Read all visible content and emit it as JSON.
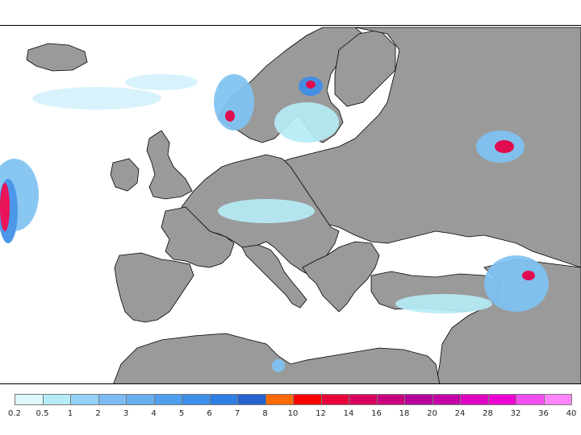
{
  "colors": {
    "land": "#9a9a9a",
    "sea": "#ffffff",
    "border": "#000000",
    "precip_light": "#d4f1fb",
    "precip_mid": "#7fc3f3",
    "precip_heavy": "#1f66d6",
    "precip_extreme": "#e8004a"
  },
  "legend": {
    "colors": [
      "#dff8fb",
      "#b6ecf6",
      "#93d2f6",
      "#7dbcf2",
      "#67aff0",
      "#4f9fee",
      "#3e8fe9",
      "#2f7ee2",
      "#2563cd",
      "#ff6a00",
      "#ff0000",
      "#e8003a",
      "#d8005e",
      "#c8007e",
      "#b6009a",
      "#c400a6",
      "#e000c2",
      "#ef00d2",
      "#f24ef0",
      "#ff85ff"
    ],
    "labels": [
      "0.2",
      "0.5",
      "1",
      "2",
      "3",
      "4",
      "5",
      "6",
      "7",
      "8",
      "10",
      "12",
      "14",
      "16",
      "18",
      "20",
      "24",
      "28",
      "32",
      "36",
      "40"
    ]
  }
}
